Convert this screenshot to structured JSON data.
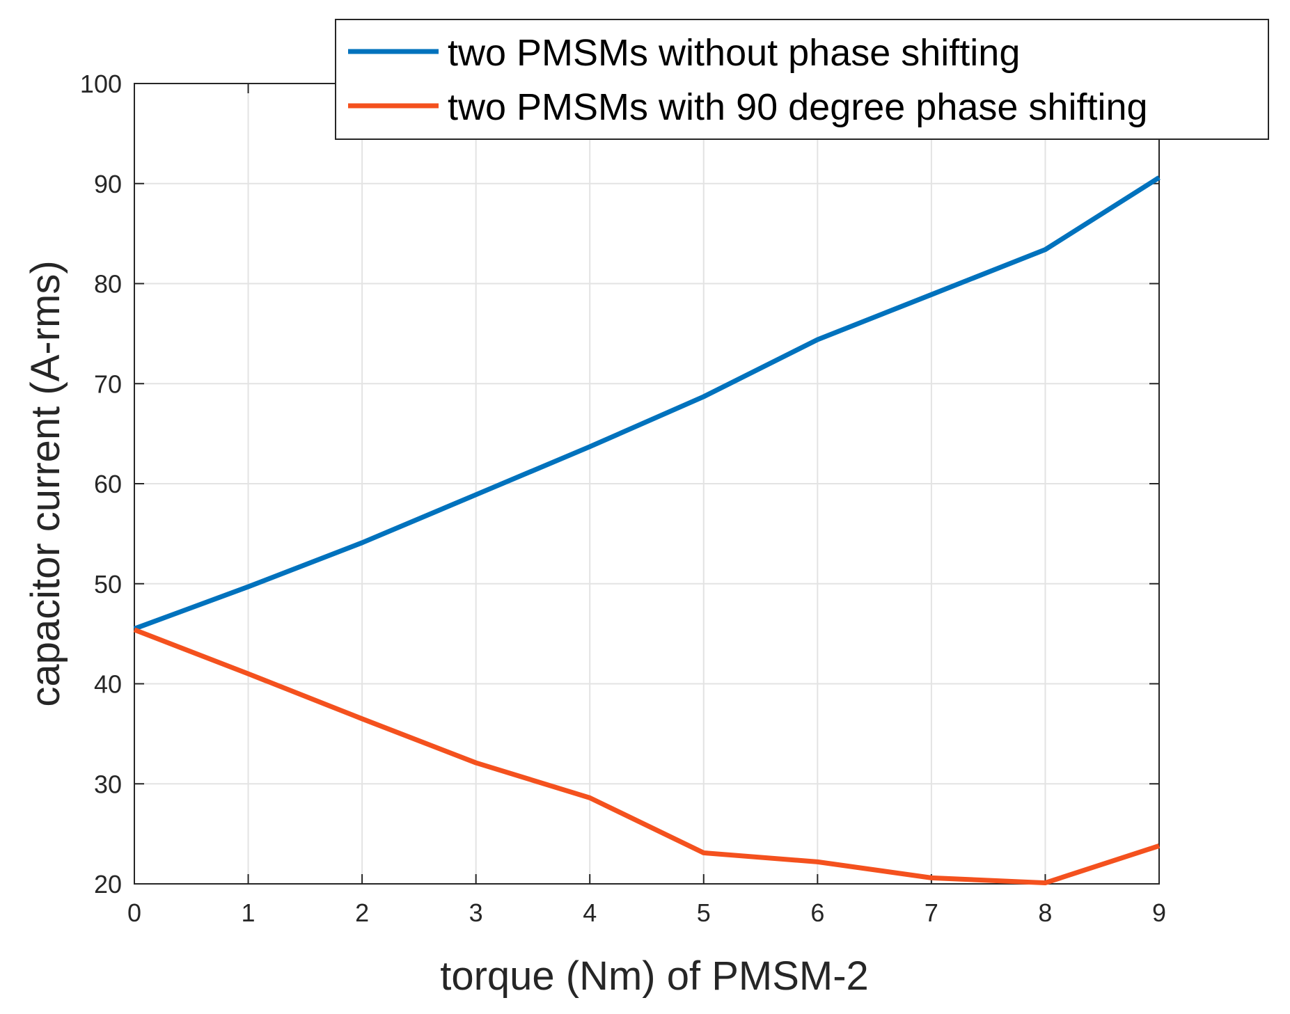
{
  "chart_data": {
    "type": "line",
    "title": "",
    "xlabel": "torque (Nm) of PMSM-2",
    "ylabel": "capacitor current (A-rms)",
    "xlim": [
      0,
      9
    ],
    "ylim": [
      20,
      100
    ],
    "x_ticks": [
      0,
      1,
      2,
      3,
      4,
      5,
      6,
      7,
      8,
      9
    ],
    "y_ticks": [
      20,
      30,
      40,
      50,
      60,
      70,
      80,
      90,
      100
    ],
    "grid": true,
    "legend_position": "top-right",
    "x": [
      0,
      1,
      2,
      3,
      4,
      5,
      6,
      7,
      8,
      9
    ],
    "series": [
      {
        "name": "two PMSMs without phase shifting",
        "color": "#0072BD",
        "values": [
          45.5,
          49.7,
          54.1,
          58.9,
          63.7,
          68.7,
          74.4,
          78.9,
          83.4,
          90.6
        ]
      },
      {
        "name": "two PMSMs with 90 degree phase shifting",
        "color": "#F4511E",
        "values": [
          45.4,
          41.0,
          36.5,
          32.1,
          28.6,
          23.1,
          22.2,
          20.6,
          20.1,
          23.8
        ]
      }
    ]
  }
}
